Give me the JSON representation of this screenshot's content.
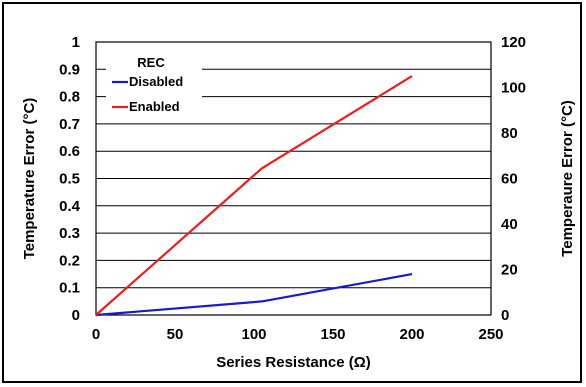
{
  "chart_data": {
    "type": "line",
    "xlabel": "Series Resistance (Ω)",
    "ylabel": "Temperature Error (°C)",
    "ylabel_right": "Temperaure Error (°C)",
    "xlim": [
      0,
      250
    ],
    "ylim": [
      0,
      1
    ],
    "ylim_right": [
      0,
      120
    ],
    "x_ticks": [
      "0",
      "50",
      "100",
      "150",
      "200",
      "250"
    ],
    "y_ticks": [
      "0",
      "0.1",
      "0.2",
      "0.3",
      "0.4",
      "0.5",
      "0.6",
      "0.7",
      "0.8",
      "0.9",
      "1"
    ],
    "y_ticks_right": [
      "0",
      "20",
      "40",
      "60",
      "80",
      "100",
      "120"
    ],
    "grid": "horizontal",
    "legend_title": "REC",
    "legend_position": "top-left",
    "series": [
      {
        "name": "Disabled",
        "axis": "left",
        "color": "#1a1acc",
        "x": [
          0,
          105,
          200
        ],
        "y": [
          0,
          0.05,
          0.15
        ]
      },
      {
        "name": "Enabled",
        "axis": "right",
        "color": "#ee1c1c",
        "x": [
          0,
          105,
          200
        ],
        "y": [
          0,
          64.5,
          105
        ]
      }
    ]
  }
}
